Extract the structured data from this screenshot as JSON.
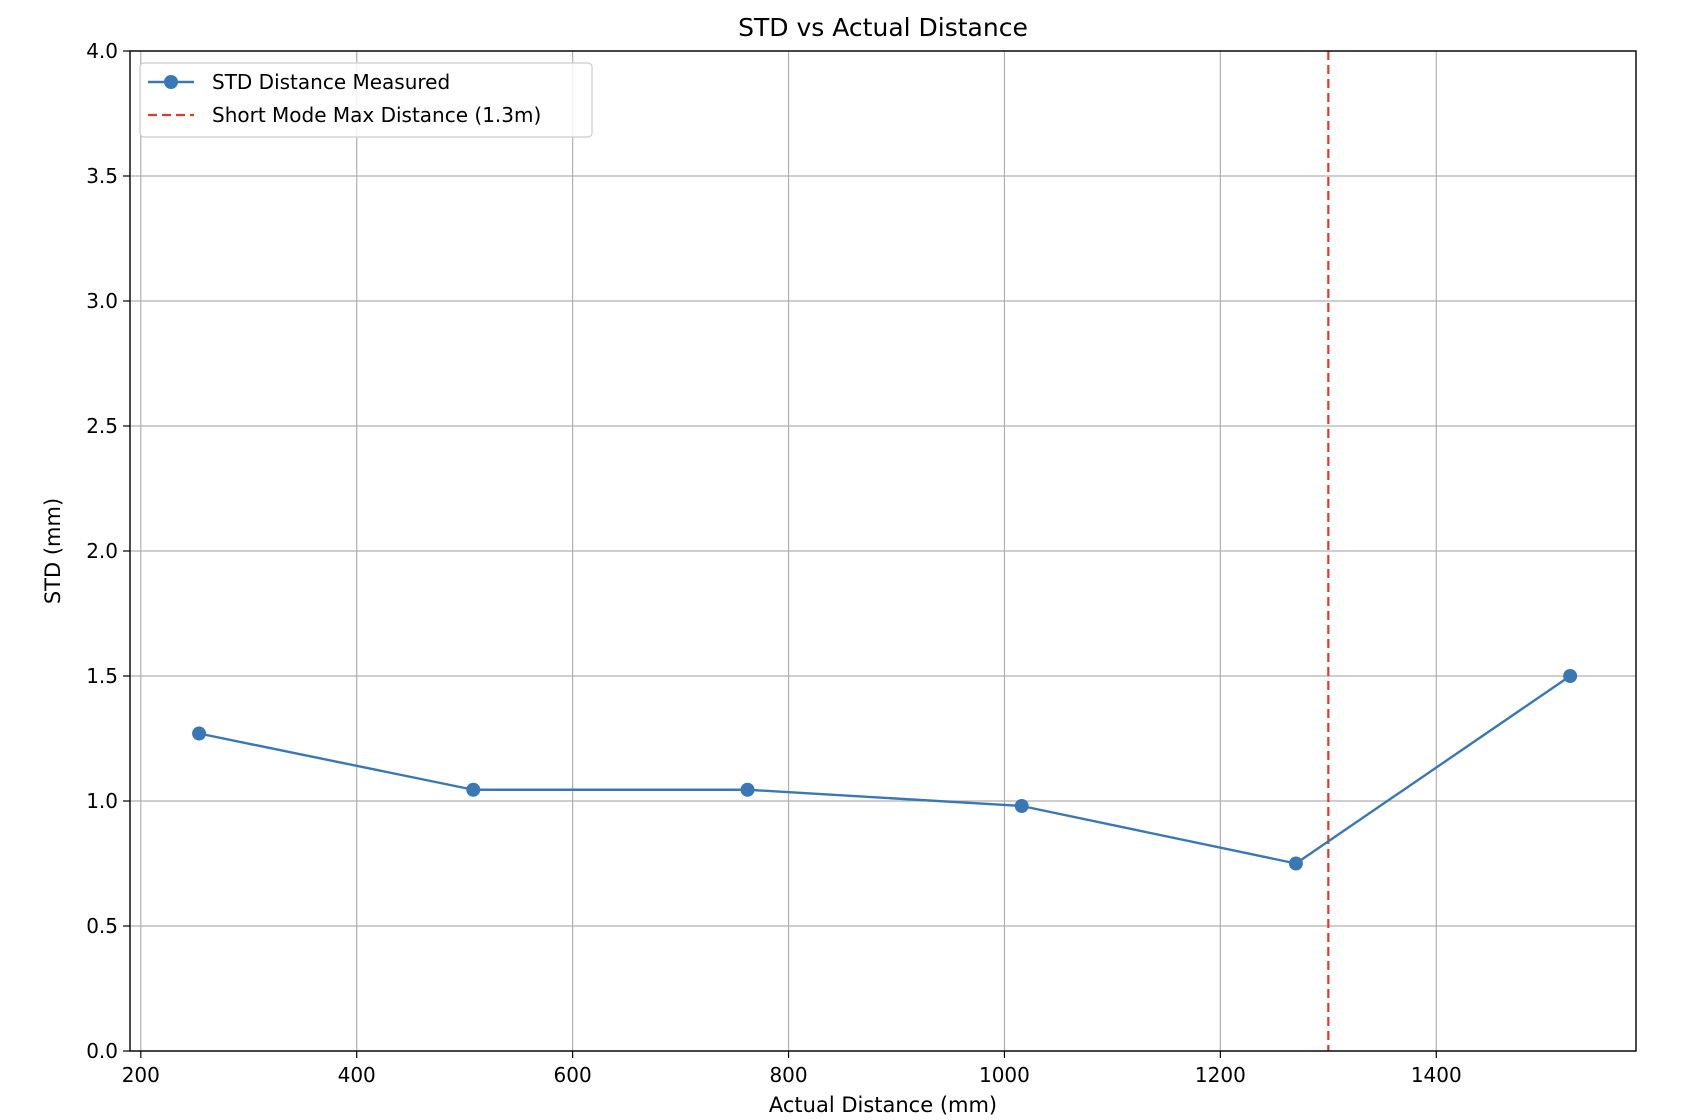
{
  "chart_data": {
    "type": "line",
    "title": "STD vs Actual Distance",
    "xlabel": "Actual Distance (mm)",
    "ylabel": "STD (mm)",
    "xlim": [
      190,
      1585
    ],
    "ylim": [
      0.0,
      4.0
    ],
    "xticks": [
      200,
      400,
      600,
      800,
      1000,
      1200,
      1400
    ],
    "xtick_labels": [
      "200",
      "400",
      "600",
      "800",
      "1000",
      "1200",
      "1400"
    ],
    "yticks": [
      0.0,
      0.5,
      1.0,
      1.5,
      2.0,
      2.5,
      3.0,
      3.5,
      4.0
    ],
    "ytick_labels": [
      "0.0",
      "0.5",
      "1.0",
      "1.5",
      "2.0",
      "2.5",
      "3.0",
      "3.5",
      "4.0"
    ],
    "grid": true,
    "legend_position": "upper-left",
    "series": [
      {
        "name": "STD Distance Measured",
        "color": "#3a78b5",
        "marker": "circle",
        "x": [
          254,
          508,
          762,
          1016,
          1270,
          1524
        ],
        "y": [
          1.27,
          1.045,
          1.045,
          0.98,
          0.75,
          1.5
        ]
      }
    ],
    "reference_lines": [
      {
        "name": "Short Mode Max Distance (1.3m)",
        "orientation": "vertical",
        "x": 1300,
        "color": "#e03a2e",
        "style": "dashed"
      }
    ]
  }
}
